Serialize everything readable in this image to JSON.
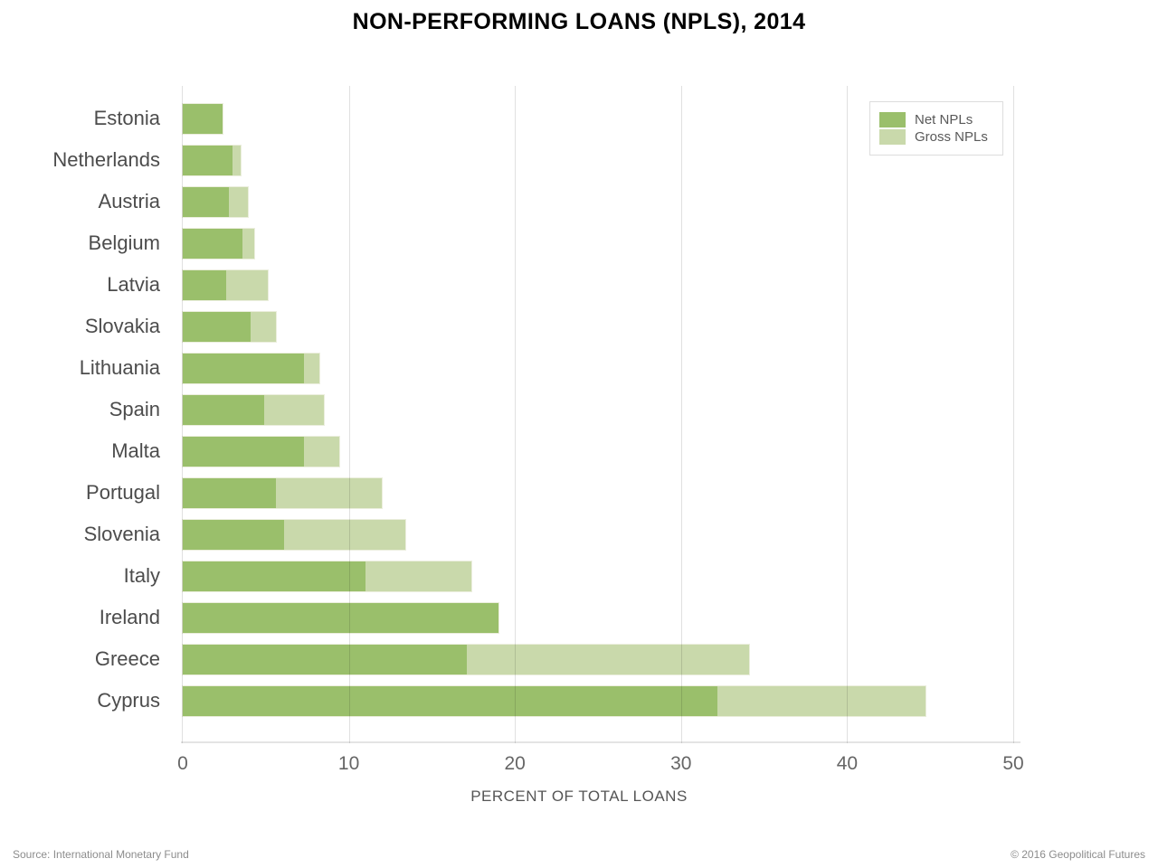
{
  "title": "NON-PERFORMING LOANS (NPLS), 2014",
  "chart_data": {
    "type": "bar",
    "orientation": "horizontal",
    "title": "NON-PERFORMING LOANS (NPLS), 2014",
    "categories": [
      "Estonia",
      "Netherlands",
      "Austria",
      "Belgium",
      "Latvia",
      "Slovakia",
      "Lithuania",
      "Spain",
      "Malta",
      "Portugal",
      "Slovenia",
      "Italy",
      "Ireland",
      "Greece",
      "Cyprus"
    ],
    "series": [
      {
        "name": "Net NPLs",
        "values": [
          2.4,
          3.0,
          2.8,
          3.6,
          2.6,
          4.1,
          7.3,
          4.9,
          7.3,
          5.6,
          6.1,
          11.0,
          19.0,
          17.1,
          32.2
        ]
      },
      {
        "name": "Gross NPLs",
        "values": [
          2.4,
          3.5,
          3.9,
          4.3,
          5.1,
          5.6,
          8.2,
          8.5,
          9.4,
          12.0,
          13.4,
          17.4,
          19.0,
          34.1,
          44.7
        ]
      }
    ],
    "xlabel": "PERCENT OF TOTAL LOANS",
    "ylabel": "",
    "x_ticks": [
      0,
      10,
      20,
      30,
      40,
      50
    ],
    "xlim": [
      0,
      50
    ],
    "grid": "vertical-only",
    "legend_position": "top-right"
  },
  "legend": {
    "net_label": "Net NPLs",
    "gross_label": "Gross NPLs"
  },
  "colors": {
    "net_green": "#9abf6b",
    "gross_green": "#c9d9ab",
    "grid_gray": "#e0e0e0",
    "label_gray": "#4c4c4c",
    "tick_gray": "#666666",
    "footer_gray": "#8c8c8c"
  },
  "footer": {
    "source": "Source: International Monetary Fund",
    "copyright": "© 2016 Geopolitical Futures"
  }
}
